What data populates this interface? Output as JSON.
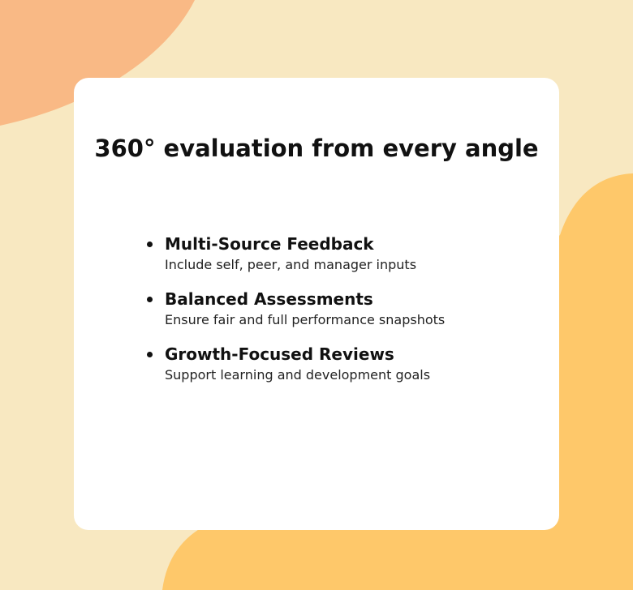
{
  "title": "360° evaluation from every angle",
  "items": [
    {
      "title": "Multi-Source Feedback",
      "desc": "Include self, peer, and manager inputs"
    },
    {
      "title": "Balanced Assessments",
      "desc": "Ensure fair and full performance snapshots"
    },
    {
      "title": "Growth-Focused Reviews",
      "desc": "Support learning and development goals"
    }
  ],
  "colors": {
    "background": "#f8e8c1",
    "blob_top": "#f9b985",
    "blob_bottom": "#fec86a",
    "card": "#ffffff"
  }
}
